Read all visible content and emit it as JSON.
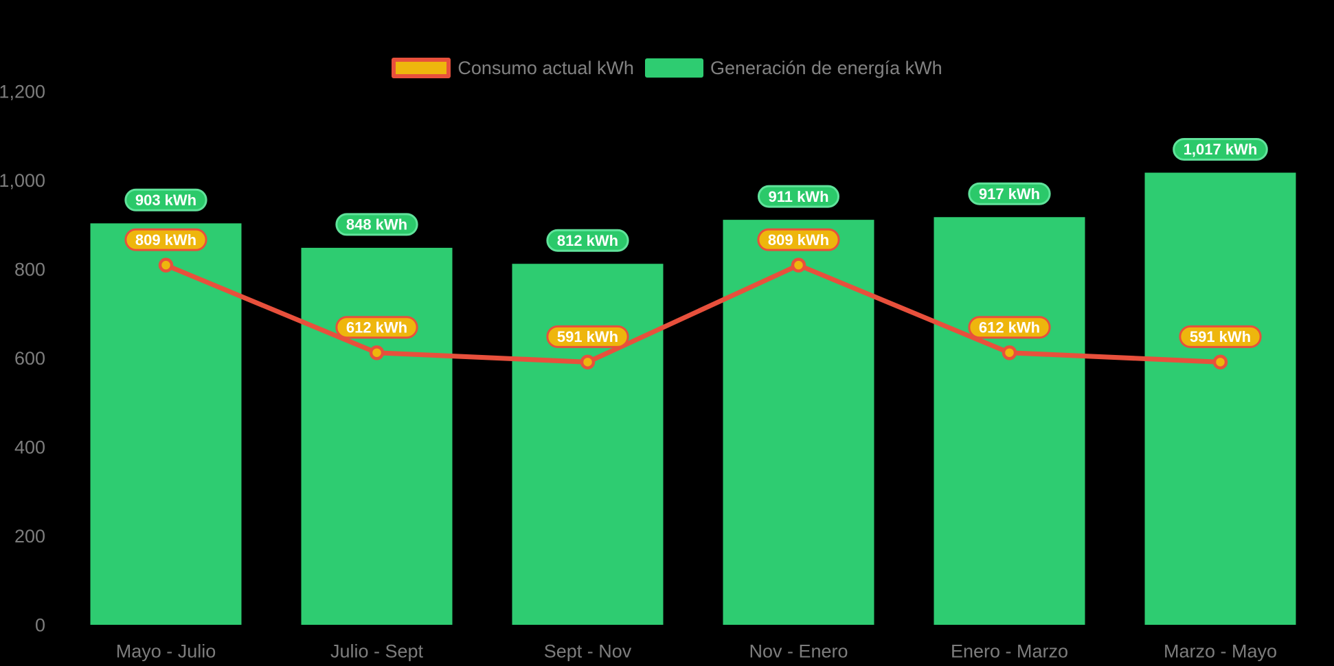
{
  "chart_data": {
    "type": "bar",
    "combo_types": [
      "bar",
      "line"
    ],
    "title": "",
    "xlabel": "",
    "ylabel": "",
    "categories": [
      "Mayo - Julio",
      "Julio - Sept",
      "Sept - Nov",
      "Nov - Enero",
      "Enero - Marzo",
      "Marzo - Mayo"
    ],
    "series": [
      {
        "name": "Consumo actual kWh",
        "type": "line",
        "values": [
          809,
          612,
          591,
          809,
          612,
          591
        ],
        "labels": [
          "809 kWh",
          "612 kWh",
          "591 kWh",
          "809 kWh",
          "612 kWh",
          "591 kWh"
        ],
        "line_color": "#e8503c",
        "point_fill": "#eeb60d",
        "label_pill_fill": "#eeb60d",
        "label_pill_border": "#e8503c"
      },
      {
        "name": "Generación de energía kWh",
        "type": "bar",
        "values": [
          903,
          848,
          812,
          911,
          917,
          1017
        ],
        "labels": [
          "903 kWh",
          "848 kWh",
          "812 kWh",
          "911 kWh",
          "917 kWh",
          "1,017 kWh"
        ],
        "bar_color": "#2ecc71",
        "label_pill_fill": "#2bc96a",
        "label_pill_border": "#60e39b"
      }
    ],
    "y_axis": {
      "range": [
        0,
        1200
      ],
      "ticks": [
        0,
        200,
        400,
        600,
        800,
        1000,
        1200
      ],
      "tick_labels": [
        "0",
        "200",
        "400",
        "600",
        "800",
        "1,000",
        "1,200"
      ]
    },
    "legend_position": "top-center",
    "grid": false,
    "background": "#000000",
    "axis_text_color": "#7d7d7d",
    "legend_text_color": "#828282",
    "pill_text_color": "#ffffff"
  }
}
